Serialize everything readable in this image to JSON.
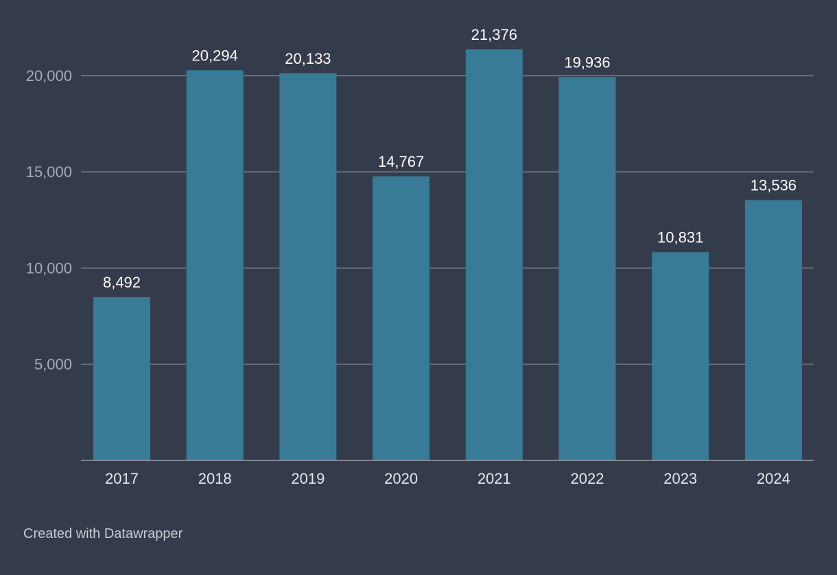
{
  "chart_data": {
    "type": "bar",
    "title": "",
    "xlabel": "",
    "ylabel": "",
    "categories": [
      "2017",
      "2018",
      "2019",
      "2020",
      "2021",
      "2022",
      "2023",
      "2024"
    ],
    "values": [
      8492,
      20294,
      20133,
      14767,
      21376,
      19936,
      10831,
      13536
    ],
    "value_labels": [
      "8,492",
      "20,294",
      "20,133",
      "14,767",
      "21,376",
      "19,936",
      "10,831",
      "13,536"
    ],
    "ylim": [
      0,
      22000
    ],
    "yticks": [
      5000,
      10000,
      15000,
      20000
    ],
    "ytick_labels": [
      "5,000",
      "10,000",
      "15,000",
      "20,000"
    ],
    "grid": true,
    "bar_color": "#377b96"
  },
  "footer": {
    "credit": "Created with Datawrapper"
  },
  "colors": {
    "background": "#343c4c",
    "bar": "#377b96"
  }
}
